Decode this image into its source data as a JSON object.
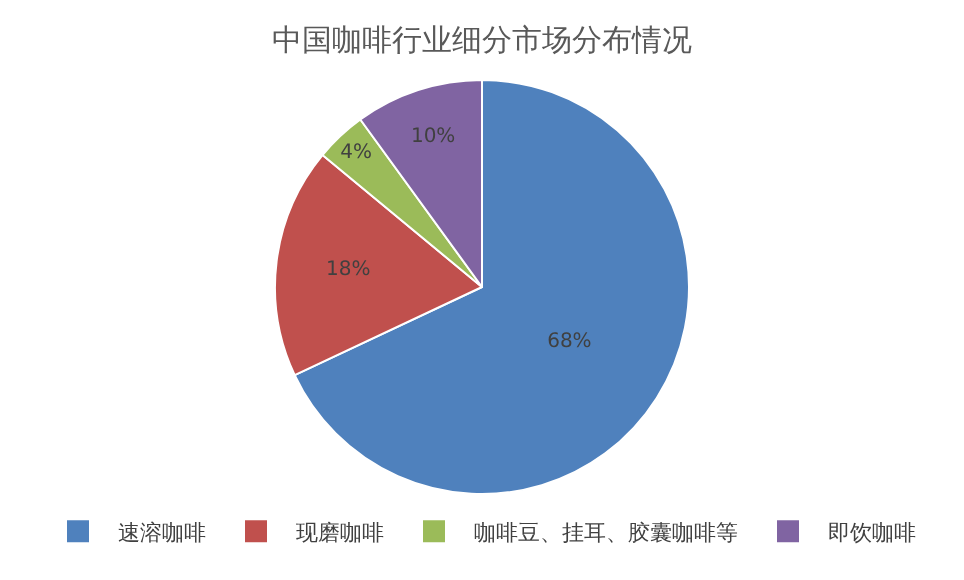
{
  "chart_data": {
    "type": "pie",
    "title": "中国咖啡行业细分市场分布情况",
    "categories": [
      "速溶咖啡",
      "现磨咖啡",
      "咖啡豆、挂耳、胶囊咖啡等",
      "即饮咖啡"
    ],
    "values": [
      68,
      18,
      4,
      10
    ],
    "value_labels": [
      "68%",
      "18%",
      "4%",
      "10%"
    ],
    "colors": [
      "#4f81bd",
      "#c0504d",
      "#9bbb59",
      "#8064a2"
    ],
    "legend": "bottom"
  }
}
